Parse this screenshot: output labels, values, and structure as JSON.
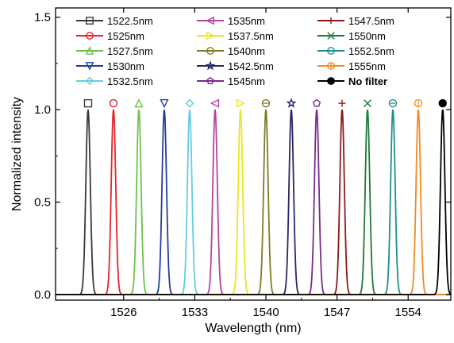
{
  "chart_data": {
    "type": "line",
    "xlabel": "Wavelength (nm)",
    "ylabel": "Normalized intensity",
    "xlim": [
      1519.3,
      1558.2
    ],
    "ylim": [
      -0.03,
      1.55
    ],
    "xticks": [
      1526,
      1533,
      1540,
      1547,
      1554
    ],
    "yticks": [
      0.0,
      0.5,
      1.0,
      1.5
    ],
    "ytick_labels": [
      "0.0",
      "0.5",
      "1.0",
      "1.5"
    ],
    "grid": false,
    "legend_position": "top",
    "peak_width_nm": 0.22,
    "series": [
      {
        "name": "1522.5nm",
        "center": 1522.5,
        "peak": 1.0,
        "color": "#3a3a3a",
        "marker": "square"
      },
      {
        "name": "1525nm",
        "center": 1525.0,
        "peak": 1.0,
        "color": "#e8232a",
        "marker": "circle"
      },
      {
        "name": "1527.5nm",
        "center": 1527.5,
        "peak": 1.0,
        "color": "#6cc24a",
        "marker": "triangle-up"
      },
      {
        "name": "1530nm",
        "center": 1530.0,
        "peak": 1.0,
        "color": "#233e99",
        "marker": "triangle-down"
      },
      {
        "name": "1532.5nm",
        "center": 1532.5,
        "peak": 1.0,
        "color": "#63cde0",
        "marker": "diamond"
      },
      {
        "name": "1535nm",
        "center": 1535.0,
        "peak": 1.0,
        "color": "#b6449d",
        "marker": "triangle-left"
      },
      {
        "name": "1537.5nm",
        "center": 1537.5,
        "peak": 1.0,
        "color": "#ede51e",
        "marker": "triangle-right"
      },
      {
        "name": "1540nm",
        "center": 1540.0,
        "peak": 1.0,
        "color": "#7f7c25",
        "marker": "hexagon"
      },
      {
        "name": "1542.5nm",
        "center": 1542.5,
        "peak": 1.0,
        "color": "#272766",
        "marker": "star"
      },
      {
        "name": "1545nm",
        "center": 1545.0,
        "peak": 1.0,
        "color": "#7a2a8c",
        "marker": "pentagon"
      },
      {
        "name": "1547.5nm",
        "center": 1547.5,
        "peak": 1.0,
        "color": "#8b1a1a",
        "marker": "plus"
      },
      {
        "name": "1550nm",
        "center": 1550.0,
        "peak": 1.0,
        "color": "#1d7a3a",
        "marker": "x"
      },
      {
        "name": "1552.5nm",
        "center": 1552.5,
        "peak": 1.0,
        "color": "#1f8f8c",
        "marker": "circle-minus"
      },
      {
        "name": "1555nm",
        "center": 1555.0,
        "peak": 1.0,
        "color": "#f28b25",
        "marker": "circle-bar"
      },
      {
        "name": "No filter",
        "center": 1557.4,
        "peak": 1.0,
        "color": "#000000",
        "marker": "filled-circle",
        "bold": true
      }
    ]
  }
}
